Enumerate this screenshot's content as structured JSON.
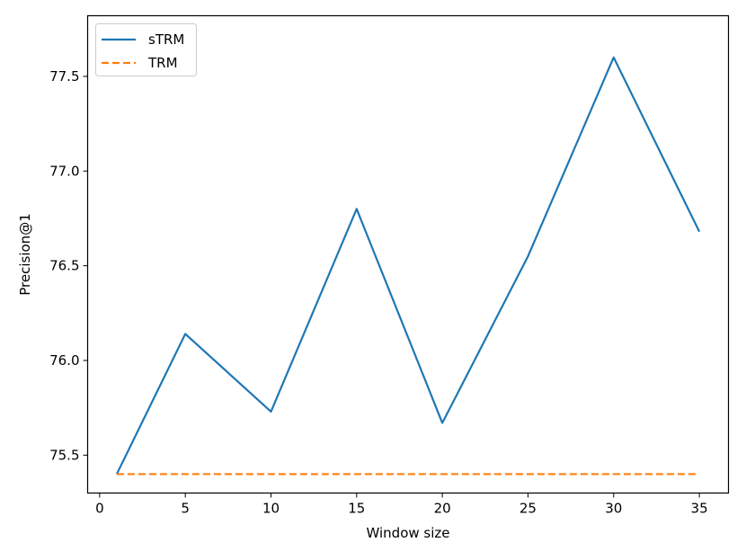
{
  "chart_data": {
    "type": "line",
    "title": "",
    "xlabel": "Window size",
    "ylabel": "Precision@1",
    "xlim": [
      -0.7,
      36.7
    ],
    "ylim": [
      75.3,
      77.82
    ],
    "xticks": [
      0,
      5,
      10,
      15,
      20,
      25,
      30,
      35
    ],
    "yticks": [
      75.5,
      76.0,
      76.5,
      77.0,
      77.5
    ],
    "ytick_labels": [
      "75.5",
      "76.0",
      "76.5",
      "77.0",
      "77.5"
    ],
    "grid": false,
    "legend_position": "top-left",
    "series": [
      {
        "name": "sTRM",
        "color": "#1f77b4",
        "line_style": "solid",
        "x": [
          1,
          5,
          10,
          15,
          20,
          25,
          30,
          35
        ],
        "y": [
          75.4,
          76.14,
          75.73,
          76.8,
          75.67,
          76.55,
          77.6,
          76.68
        ]
      },
      {
        "name": "TRM",
        "color": "#ff7f0e",
        "line_style": "dashed",
        "x": [
          1,
          5,
          10,
          15,
          20,
          25,
          30,
          35
        ],
        "y": [
          75.4,
          75.4,
          75.4,
          75.4,
          75.4,
          75.4,
          75.4,
          75.4
        ]
      }
    ]
  }
}
